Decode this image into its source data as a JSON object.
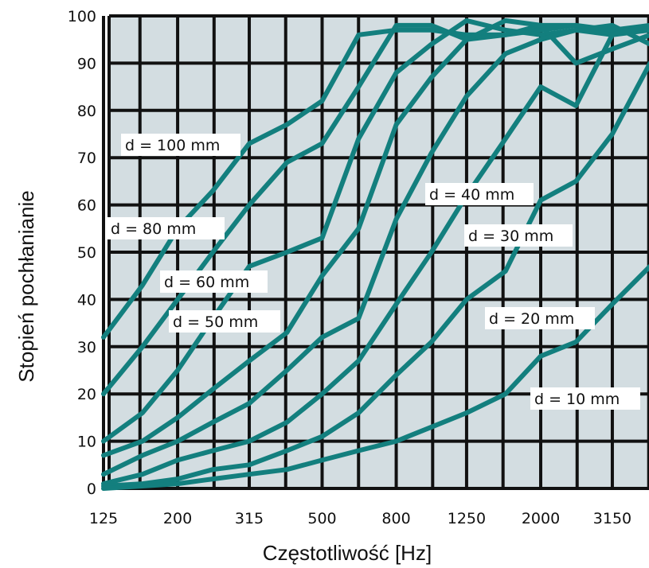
{
  "chart_data": {
    "type": "line",
    "title": "",
    "xlabel": "Częstotliwość [Hz]",
    "ylabel": "Stopień pochłanianie",
    "x_ticks": [
      "125",
      "200",
      "315",
      "500",
      "800",
      "1250",
      "2000",
      "3150"
    ],
    "y_ticks": [
      "0",
      "10",
      "20",
      "30",
      "40",
      "50",
      "60",
      "70",
      "80",
      "90",
      "100"
    ],
    "ylim": [
      0,
      100
    ],
    "grid": true,
    "background_color": "#d3dde1",
    "line_color": "#137f7e",
    "series": [
      {
        "name": "d = 100 mm",
        "x": [
          125,
          160,
          200,
          250,
          315,
          400,
          500,
          630,
          800,
          1000,
          1250,
          1600,
          2000,
          2500,
          3150,
          4000
        ],
        "y": [
          32,
          43,
          55,
          63,
          73,
          77,
          82,
          96,
          97,
          97,
          96,
          96,
          98,
          98,
          96,
          97
        ]
      },
      {
        "name": "d = 80 mm",
        "x": [
          125,
          160,
          200,
          250,
          315,
          400,
          500,
          630,
          800,
          1000,
          1250,
          1600,
          2000,
          2500,
          3150,
          4000
        ],
        "y": [
          20,
          30,
          40,
          50,
          60,
          69,
          73,
          85,
          98,
          98,
          95,
          96,
          97,
          98,
          97,
          98
        ]
      },
      {
        "name": "d = 60 mm",
        "x": [
          125,
          160,
          200,
          250,
          315,
          400,
          500,
          630,
          800,
          1000,
          1250,
          1600,
          2000,
          2500,
          3150,
          4000
        ],
        "y": [
          10,
          16,
          25,
          36,
          47,
          50,
          53,
          74,
          88,
          94,
          99,
          97,
          96,
          97,
          98,
          94
        ]
      },
      {
        "name": "d = 50 mm",
        "x": [
          125,
          160,
          200,
          250,
          315,
          400,
          500,
          630,
          800,
          1000,
          1250,
          1600,
          2000,
          2500,
          3150,
          4000
        ],
        "y": [
          7,
          10,
          15,
          21,
          27,
          33,
          45,
          55,
          77,
          87,
          95,
          99,
          98,
          90,
          93,
          96
        ]
      },
      {
        "name": "d = 40 mm",
        "x": [
          125,
          160,
          200,
          250,
          315,
          400,
          500,
          630,
          800,
          1000,
          1250,
          1600,
          2000,
          2500,
          3150,
          4000
        ],
        "y": [
          3,
          7,
          10,
          14,
          18,
          25,
          32,
          36,
          57,
          71,
          83,
          92,
          95,
          97,
          96,
          98
        ]
      },
      {
        "name": "d = 30 mm",
        "x": [
          125,
          160,
          200,
          250,
          315,
          400,
          500,
          630,
          800,
          1000,
          1250,
          1600,
          2000,
          2500,
          3150,
          4000
        ],
        "y": [
          1,
          3,
          6,
          8,
          10,
          14,
          20,
          27,
          39,
          50,
          62,
          74,
          85,
          81,
          96,
          98
        ]
      },
      {
        "name": "d = 20 mm",
        "x": [
          125,
          160,
          200,
          250,
          315,
          400,
          500,
          630,
          800,
          1000,
          1250,
          1600,
          2000,
          2500,
          3150,
          4000
        ],
        "y": [
          0.5,
          1,
          2,
          4,
          5,
          8,
          11,
          16,
          24,
          31,
          40,
          46,
          61,
          65,
          75,
          90
        ]
      },
      {
        "name": "d = 10 mm",
        "x": [
          125,
          160,
          200,
          250,
          315,
          400,
          500,
          630,
          800,
          1000,
          1250,
          1600,
          2000,
          2500,
          3150,
          4000
        ],
        "y": [
          0,
          0.5,
          1,
          2,
          3,
          4,
          6,
          8,
          10,
          13,
          16,
          20,
          28,
          31,
          39,
          47
        ]
      }
    ],
    "curve_labels": [
      "d = 100 mm",
      "d = 80 mm",
      "d = 60 mm",
      "d = 50 mm",
      "d = 40 mm",
      "d = 30 mm",
      "d = 20 mm",
      "d = 10 mm"
    ]
  }
}
